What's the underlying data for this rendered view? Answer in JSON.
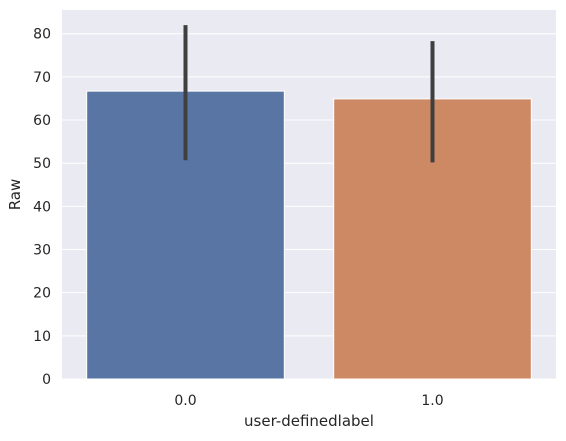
{
  "chart_data": {
    "type": "bar",
    "xlabel": "user-definedlabel",
    "ylabel": "Raw",
    "categories": [
      "0.0",
      "1.0"
    ],
    "values": [
      66.7,
      64.9
    ],
    "error_bars": [
      {
        "low": 50.7,
        "high": 82.0
      },
      {
        "low": 50.2,
        "high": 78.3
      }
    ],
    "ylim": [
      0,
      85.5
    ],
    "yticks": [
      0,
      10,
      20,
      30,
      40,
      50,
      60,
      70,
      80
    ],
    "grid": true,
    "colors": {
      "background": "#eaeaf2",
      "grid": "#ffffff",
      "bars": [
        "#5875a4",
        "#cc8963"
      ],
      "error_bar": "#3f3f3f",
      "text": "#262626"
    }
  }
}
